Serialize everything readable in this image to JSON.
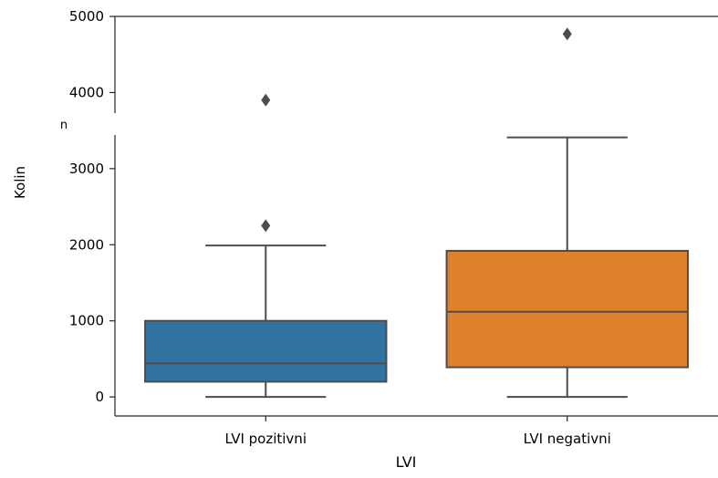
{
  "chart_data": {
    "type": "box",
    "title": "",
    "xlabel": "LVI",
    "ylabel": "Kolin",
    "categories": [
      "LVI pozitivni",
      "LVI negativni"
    ],
    "series": [
      {
        "category": "LVI pozitivni",
        "color": "#3274a1",
        "whisker_low": 0,
        "q1": 200,
        "median": 440,
        "q3": 1000,
        "whisker_high": 1990,
        "outliers": [
          2250,
          3900
        ]
      },
      {
        "category": "LVI negativni",
        "color": "#e1812c",
        "whisker_low": 0,
        "q1": 390,
        "median": 1120,
        "q3": 1920,
        "whisker_high": 3410,
        "outliers": [
          4770
        ]
      }
    ],
    "yticks": [
      0,
      1000,
      2000,
      3000,
      4000,
      5000
    ],
    "ytick_labels": [
      "0",
      "1000",
      "2000",
      "3000",
      "4000",
      "5000"
    ],
    "ylim": [
      -250,
      5000
    ],
    "grid": false,
    "legend": "none",
    "stray_label": "n"
  }
}
